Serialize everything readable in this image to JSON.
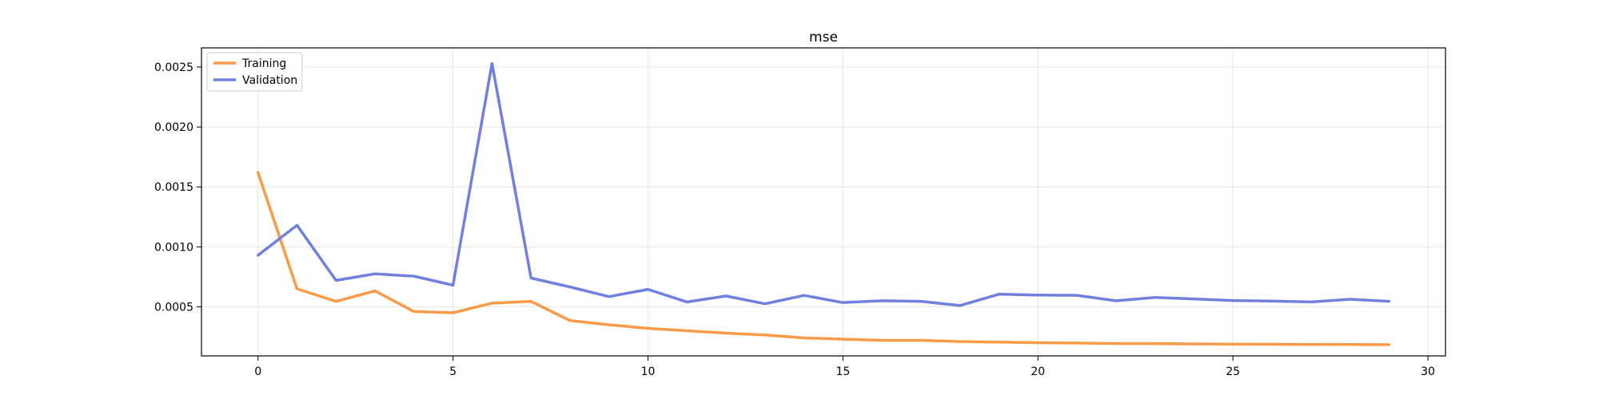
{
  "chart_data": {
    "type": "line",
    "title": "mse",
    "xlabel": "",
    "ylabel": "",
    "xlim": [
      -1.45,
      30.45
    ],
    "ylim": [
      9e-05,
      0.00266
    ],
    "x_ticks": [
      0,
      5,
      10,
      15,
      20,
      25,
      30
    ],
    "x_tick_labels": [
      "0",
      "5",
      "10",
      "15",
      "20",
      "25",
      "30"
    ],
    "y_ticks": [
      0.0005,
      0.001,
      0.0015,
      0.002,
      0.0025
    ],
    "y_tick_labels": [
      "0.0005",
      "0.0010",
      "0.0015",
      "0.0020",
      "0.0025"
    ],
    "grid": true,
    "legend_position": "top-left",
    "x": [
      0,
      1,
      2,
      3,
      4,
      5,
      6,
      7,
      8,
      9,
      10,
      11,
      12,
      13,
      14,
      15,
      16,
      17,
      18,
      19,
      20,
      21,
      22,
      23,
      24,
      25,
      26,
      27,
      28,
      29
    ],
    "series": [
      {
        "name": "Training",
        "color": "#fa9a46",
        "values": [
          0.00162,
          0.00065,
          0.000545,
          0.000632,
          0.00046,
          0.00045,
          0.00053,
          0.000545,
          0.000385,
          0.00035,
          0.00032,
          0.0003,
          0.00028,
          0.000265,
          0.00024,
          0.00023,
          0.00022,
          0.00022,
          0.00021,
          0.000205,
          0.0002,
          0.000197,
          0.000193,
          0.000192,
          0.00019,
          0.000188,
          0.000187,
          0.000186,
          0.000185,
          0.000184
        ]
      },
      {
        "name": "Validation",
        "color": "#717fdf",
        "values": [
          0.00093,
          0.00118,
          0.00072,
          0.000775,
          0.000755,
          0.00068,
          0.00253,
          0.00074,
          0.000665,
          0.000585,
          0.000645,
          0.00054,
          0.00059,
          0.000525,
          0.000595,
          0.000535,
          0.00055,
          0.000545,
          0.00051,
          0.000605,
          0.000598,
          0.000595,
          0.00055,
          0.000578,
          0.000565,
          0.000552,
          0.000548,
          0.00054,
          0.000563,
          0.000545
        ]
      }
    ]
  }
}
